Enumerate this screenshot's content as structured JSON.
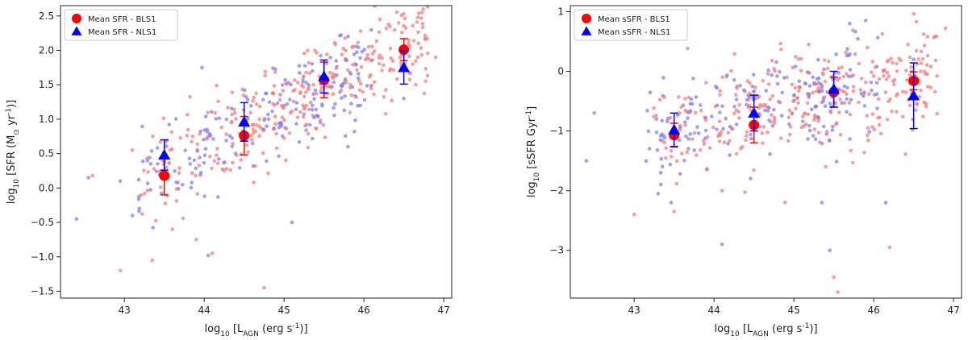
{
  "colors": {
    "bls1": "#ff0000",
    "nls1": "#0000ff",
    "bls1_points": "#f4787a",
    "nls1_points": "#7b7bf2",
    "axis": "#222222"
  },
  "chart_data": [
    {
      "id": "left",
      "type": "scatter",
      "title": "",
      "xlabel": {
        "prefix": "log",
        "sub": "10",
        "text": " [L",
        "sub2": "AGN",
        "tail": " (erg s",
        "sup": "-1",
        "end": ")]"
      },
      "ylabel": {
        "prefix": "log",
        "sub": "10",
        "text": " [SFR (M",
        "sub2": "⊙",
        "mid": " yr",
        "sup": "-1",
        "end": ")]"
      },
      "xlim": [
        42.2,
        47.1
      ],
      "ylim": [
        -1.6,
        2.65
      ],
      "xticks": [
        43,
        44,
        45,
        46,
        47
      ],
      "xtick_labels": [
        "43",
        "44",
        "45",
        "46",
        "47"
      ],
      "yticks": [
        -1.5,
        -1.0,
        -0.5,
        0.0,
        0.5,
        1.0,
        1.5,
        2.0,
        2.5
      ],
      "ytick_labels": [
        "−1.5",
        "−1.0",
        "−0.5",
        "0.0",
        "0.5",
        "1.0",
        "1.5",
        "2.0",
        "2.5"
      ],
      "legend": {
        "placement": "top-left",
        "entries": [
          "Mean SFR - BLS1",
          "Mean SFR - NLS1"
        ]
      },
      "scatter_seed": 11,
      "scatter": {
        "bls1_count": 330,
        "nls1_count": 190,
        "outliers_bls1": [
          [
            42.95,
            -1.2
          ],
          [
            43.35,
            -1.05
          ],
          [
            42.6,
            0.18
          ],
          [
            43.1,
            0.55
          ],
          [
            44.75,
            -1.45
          ],
          [
            43.9,
            -0.75
          ],
          [
            44.1,
            -0.95
          ],
          [
            46.2,
            2.45
          ],
          [
            46.9,
            1.9
          ],
          [
            43.6,
            -0.6
          ]
        ],
        "outliers_nls1": [
          [
            42.4,
            -0.45
          ],
          [
            42.55,
            0.15
          ],
          [
            42.95,
            0.1
          ],
          [
            43.1,
            -0.4
          ],
          [
            44.05,
            -0.98
          ],
          [
            45.1,
            -0.5
          ],
          [
            45.8,
            0.6
          ],
          [
            46.5,
            1.3
          ]
        ]
      },
      "series": [
        {
          "name": "Mean SFR - BLS1",
          "marker": "circle",
          "x": [
            43.5,
            44.5,
            45.5,
            46.5
          ],
          "y": [
            0.18,
            0.76,
            1.57,
            2.01
          ],
          "err": [
            0.28,
            0.28,
            0.26,
            0.16
          ]
        },
        {
          "name": "Mean SFR - NLS1",
          "marker": "triangle",
          "x": [
            43.5,
            44.5,
            45.5,
            46.5
          ],
          "y": [
            0.48,
            0.96,
            1.62,
            1.75
          ],
          "err": [
            0.22,
            0.28,
            0.24,
            0.24
          ]
        }
      ]
    },
    {
      "id": "right",
      "type": "scatter",
      "title": "",
      "xlabel": {
        "prefix": "log",
        "sub": "10",
        "text": " [L",
        "sub2": "AGN",
        "tail": " (erg s",
        "sup": "-1",
        "end": ")]"
      },
      "ylabel": {
        "prefix": "log",
        "sub": "10",
        "text": " [sSFR Gyr",
        "sup": "-1",
        "end": "]"
      },
      "xlim": [
        42.2,
        47.1
      ],
      "ylim": [
        -3.8,
        1.1
      ],
      "xticks": [
        43,
        44,
        45,
        46,
        47
      ],
      "xtick_labels": [
        "43",
        "44",
        "45",
        "46",
        "47"
      ],
      "yticks": [
        -3,
        -2,
        -1,
        0,
        1
      ],
      "ytick_labels": [
        "−3",
        "−2",
        "−1",
        "0",
        "1"
      ],
      "legend": {
        "placement": "top-left",
        "entries": [
          "Mean sSFR - BLS1",
          "Mean sSFR - NLS1"
        ]
      },
      "scatter_seed": 23,
      "scatter": {
        "bls1_count": 330,
        "nls1_count": 190,
        "outliers_bls1": [
          [
            43.0,
            -2.4
          ],
          [
            43.5,
            -2.35
          ],
          [
            44.1,
            -2.0
          ],
          [
            45.5,
            -3.45
          ],
          [
            45.55,
            -3.7
          ],
          [
            46.2,
            -2.95
          ],
          [
            45.4,
            -1.6
          ],
          [
            46.9,
            0.72
          ]
        ],
        "outliers_nls1": [
          [
            42.4,
            -1.5
          ],
          [
            42.5,
            -0.7
          ],
          [
            43.3,
            -2.05
          ],
          [
            44.1,
            -2.9
          ],
          [
            45.35,
            -2.2
          ],
          [
            45.45,
            -3.0
          ],
          [
            46.15,
            -2.2
          ],
          [
            45.7,
            0.8
          ],
          [
            45.9,
            0.85
          ],
          [
            46.5,
            0.2
          ]
        ]
      },
      "series": [
        {
          "name": "Mean sSFR - BLS1",
          "marker": "circle",
          "x": [
            43.5,
            44.5,
            45.5,
            46.5
          ],
          "y": [
            -1.07,
            -0.9,
            -0.35,
            -0.16
          ],
          "err": [
            0.2,
            0.3,
            0.25,
            0.15
          ]
        },
        {
          "name": "Mean sSFR - NLS1",
          "marker": "triangle",
          "x": [
            43.5,
            44.5,
            45.5,
            46.5
          ],
          "y": [
            -0.98,
            -0.7,
            -0.3,
            -0.41
          ],
          "err": [
            0.28,
            0.3,
            0.3,
            0.55
          ]
        }
      ]
    }
  ]
}
